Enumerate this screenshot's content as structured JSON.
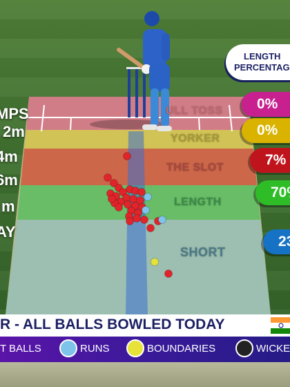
{
  "zones": {
    "full_toss": "ULL TOSS",
    "yorker": "YORKER",
    "slot": "THE SLOT",
    "length": "LENGTH",
    "short": "SHORT"
  },
  "speed_labels": [
    "MPS",
    "2m",
    "4m",
    "6m",
    "m",
    "AY"
  ],
  "length_header": [
    "LENGTH",
    "PERCENTAGE"
  ],
  "percentages": {
    "full_toss": "0%",
    "yorker": "0%",
    "slot": "7%",
    "length": "70%",
    "short": "23"
  },
  "banner": "R - ALL BALLS BOWLED TODAY",
  "legend": {
    "balls": "T BALLS",
    "runs": "RUNS",
    "boundaries": "BOUNDARIES",
    "wickets": "WICKE"
  },
  "colors": {
    "balls": "#e0242a",
    "runs": "#7dc3ea",
    "boundaries": "#e6e23a",
    "wickets": "#222222"
  }
}
